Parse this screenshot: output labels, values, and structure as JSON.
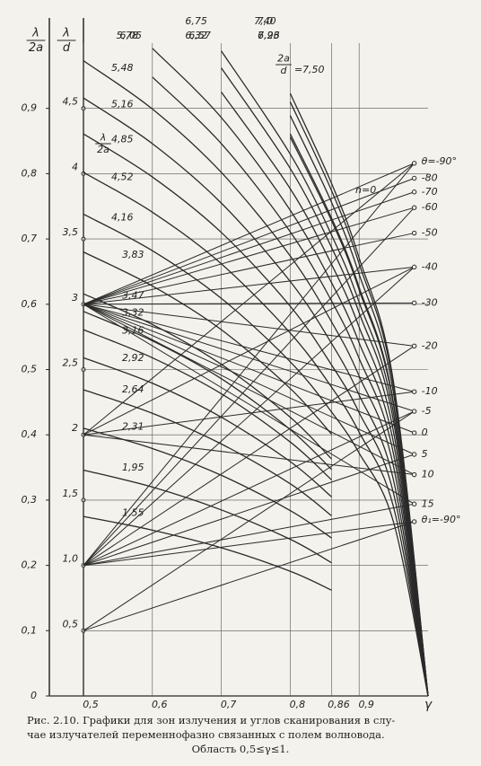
{
  "chart_data": {
    "type": "line",
    "y_label": {
      "numerator": "λ",
      "denominator": "2a"
    },
    "y2_label": {
      "numerator": "λ",
      "denominator": "d"
    },
    "x_label": "γ",
    "xlim": [
      0.5,
      1.0
    ],
    "xticks": [
      {
        "value": 0.5,
        "label": "0,5"
      },
      {
        "value": 0.6,
        "label": "0,6"
      },
      {
        "value": 0.7,
        "label": "0,7"
      },
      {
        "value": 0.8,
        "label": "0,8"
      },
      {
        "value": 0.86,
        "label": "0,86"
      },
      {
        "value": 0.9,
        "label": "0,9"
      }
    ],
    "ylim": [
      0,
      1.0
    ],
    "yticks": [
      0,
      {
        "value": 0.1,
        "label": "0,1"
      },
      {
        "value": 0.2,
        "label": "0,2"
      },
      {
        "value": 0.3,
        "label": "0,3"
      },
      {
        "value": 0.4,
        "label": "0,4"
      },
      {
        "value": 0.5,
        "label": "0,5"
      },
      {
        "value": 0.6,
        "label": "0,6"
      },
      {
        "value": 0.7,
        "label": "0,7"
      },
      {
        "value": 0.8,
        "label": "0,8"
      },
      {
        "value": 0.9,
        "label": "0,9"
      }
    ],
    "y2lim": [
      0,
      5.0
    ],
    "y2ticks": [
      {
        "value": 0.5,
        "label": "0,5"
      },
      {
        "value": 1.0,
        "label": "1,0"
      },
      {
        "value": 1.5,
        "label": "1,5"
      },
      2,
      {
        "value": 2.5,
        "label": "2,5"
      },
      3,
      {
        "value": 3.5,
        "label": "3,5"
      },
      4,
      {
        "value": 4.5,
        "label": "4,5"
      }
    ],
    "grid": true,
    "color": "#2a2a2a",
    "x": [
      0.5,
      0.6,
      0.7,
      0.8,
      0.86,
      0.9,
      0.95,
      1.0
    ],
    "series": [
      {
        "name": "1,55",
        "values": [
          0.275,
          0.254,
          0.227,
          0.191,
          0.162,
          null,
          null,
          null
        ]
      },
      {
        "name": "1,95",
        "values": [
          0.346,
          0.32,
          0.285,
          0.24,
          0.204,
          null,
          null,
          null
        ]
      },
      {
        "name": "2,31",
        "values": [
          0.41,
          0.379,
          0.338,
          0.284,
          0.242,
          null,
          null,
          null
        ]
      },
      {
        "name": "2,64",
        "values": [
          0.469,
          0.433,
          0.386,
          0.325,
          0.276,
          null,
          null,
          null
        ]
      },
      {
        "name": "2,92",
        "values": [
          0.518,
          0.479,
          0.427,
          0.359,
          0.305,
          null,
          null,
          null
        ]
      },
      {
        "name": "3,16",
        "values": [
          0.561,
          0.518,
          0.463,
          0.389,
          0.331,
          null,
          null,
          null
        ]
      },
      {
        "name": "3,32",
        "values": [
          0.589,
          0.544,
          0.486,
          0.408,
          0.347,
          null,
          null,
          null
        ]
      },
      {
        "name": "3,47",
        "values": [
          0.616,
          0.569,
          0.508,
          0.427,
          0.363,
          null,
          null,
          null
        ]
      },
      {
        "name": "3,83",
        "values": [
          0.68,
          0.628,
          0.561,
          0.471,
          0.401,
          null,
          null,
          null
        ]
      },
      {
        "name": "4,16",
        "values": [
          0.738,
          0.682,
          0.609,
          0.512,
          0.435,
          0.372,
          0.266,
          0
        ]
      },
      {
        "name": "4,52",
        "values": [
          0.802,
          0.741,
          0.662,
          0.556,
          0.473,
          0.404,
          0.289,
          0
        ]
      },
      {
        "name": "4,85",
        "values": [
          0.861,
          0.795,
          0.71,
          0.597,
          0.507,
          0.434,
          0.31,
          0
        ]
      },
      {
        "name": "5,16",
        "values": [
          0.916,
          0.846,
          0.755,
          0.635,
          0.54,
          0.461,
          0.33,
          0
        ]
      },
      {
        "name": "5,48",
        "values": [
          0.973,
          0.899,
          0.802,
          0.674,
          0.573,
          0.49,
          0.351,
          0
        ]
      },
      {
        "name": "5,78",
        "values": [
          null,
          0.948,
          0.846,
          0.711,
          0.605,
          0.517,
          0.37,
          0
        ]
      },
      {
        "name": "6,05",
        "values": [
          null,
          0.992,
          0.886,
          0.744,
          0.633,
          0.541,
          0.387,
          0
        ]
      },
      {
        "name": "6,32",
        "values": [
          null,
          null,
          0.925,
          0.777,
          0.661,
          0.565,
          0.404,
          0
        ]
      },
      {
        "name": "6,57",
        "values": [
          null,
          null,
          0.962,
          0.808,
          0.687,
          0.587,
          0.42,
          0
        ]
      },
      {
        "name": "6,75",
        "values": [
          null,
          null,
          0.988,
          0.83,
          0.706,
          0.603,
          0.432,
          0
        ]
      },
      {
        "name": "6,96",
        "values": [
          null,
          null,
          null,
          0.856,
          0.728,
          0.622,
          0.445,
          0
        ]
      },
      {
        "name": "7,0",
        "values": [
          null,
          null,
          null,
          0.861,
          0.732,
          0.626,
          0.448,
          0
        ]
      },
      {
        "name": "7,23",
        "values": [
          null,
          null,
          null,
          0.889,
          0.756,
          0.646,
          0.463,
          0
        ]
      },
      {
        "name": "7,40",
        "values": [
          null,
          null,
          null,
          0.91,
          0.774,
          0.662,
          0.474,
          0
        ]
      },
      {
        "name": "7,50",
        "values": [
          null,
          null,
          null,
          0.923,
          0.785,
          0.671,
          0.48,
          0
        ]
      }
    ],
    "theta_scale": [
      {
        "value": 0.816,
        "label": "θ=-90°"
      },
      {
        "value": 0.793,
        "label": "-80"
      },
      {
        "value": 0.772,
        "label": "-70"
      },
      {
        "value": 0.748,
        "label": "-60"
      },
      {
        "value": 0.709,
        "label": "-50"
      },
      {
        "value": 0.657,
        "label": "-40"
      },
      {
        "value": 0.602,
        "label": "-30"
      },
      {
        "value": 0.536,
        "label": "-20"
      },
      {
        "value": 0.466,
        "label": "-10"
      },
      {
        "value": 0.436,
        "label": "-5"
      },
      {
        "value": 0.403,
        "label": "0"
      },
      {
        "value": 0.37,
        "label": "5"
      },
      {
        "value": 0.339,
        "label": "10"
      },
      {
        "value": 0.294,
        "label": "15"
      },
      {
        "value": 0.267,
        "label": "θ₁=-90°"
      }
    ],
    "lines": [
      {
        "x": [
          0.5,
          0.98
        ],
        "values": [
          0.6,
          0.816
        ]
      },
      {
        "x": [
          0.5,
          0.98
        ],
        "values": [
          0.6,
          0.793
        ]
      },
      {
        "x": [
          0.5,
          0.98
        ],
        "values": [
          0.6,
          0.772
        ]
      },
      {
        "x": [
          0.5,
          0.98
        ],
        "values": [
          0.6,
          0.748
        ]
      },
      {
        "x": [
          0.5,
          0.98
        ],
        "values": [
          0.6,
          0.709
        ]
      },
      {
        "x": [
          0.5,
          0.98
        ],
        "values": [
          0.6,
          0.657
        ]
      },
      {
        "x": [
          0.5,
          0.98
        ],
        "values": [
          0.6,
          0.602
        ]
      },
      {
        "x": [
          0.5,
          0.98
        ],
        "values": [
          0.6,
          0.536
        ]
      },
      {
        "x": [
          0.5,
          0.98
        ],
        "values": [
          0.6,
          0.466
        ]
      },
      {
        "x": [
          0.5,
          0.98
        ],
        "values": [
          0.6,
          0.436
        ]
      },
      {
        "x": [
          0.5,
          0.98
        ],
        "values": [
          0.6,
          0.403
        ]
      },
      {
        "x": [
          0.5,
          0.98
        ],
        "values": [
          0.6,
          0.37
        ]
      },
      {
        "x": [
          0.5,
          0.98
        ],
        "values": [
          0.6,
          0.339
        ]
      },
      {
        "x": [
          0.5,
          0.98
        ],
        "values": [
          0.6,
          0.294
        ]
      },
      {
        "x": [
          0.5,
          0.98
        ],
        "values": [
          0.2,
          0.816
        ]
      },
      {
        "x": [
          0.5,
          0.98
        ],
        "values": [
          0.2,
          0.748
        ]
      },
      {
        "x": [
          0.5,
          0.98
        ],
        "values": [
          0.2,
          0.657
        ]
      },
      {
        "x": [
          0.5,
          0.98
        ],
        "values": [
          0.2,
          0.536
        ]
      },
      {
        "x": [
          0.5,
          0.98
        ],
        "values": [
          0.2,
          0.436
        ]
      },
      {
        "x": [
          0.5,
          0.98
        ],
        "values": [
          0.2,
          0.37
        ]
      },
      {
        "x": [
          0.5,
          0.98
        ],
        "values": [
          0.2,
          0.294
        ]
      },
      {
        "x": [
          0.5,
          0.98
        ],
        "values": [
          0.2,
          0.267
        ]
      },
      {
        "x": [
          0.5,
          0.98
        ],
        "values": [
          0.4,
          0.816
        ]
      },
      {
        "x": [
          0.5,
          0.98
        ],
        "values": [
          0.4,
          0.657
        ]
      },
      {
        "x": [
          0.5,
          0.98
        ],
        "values": [
          0.4,
          0.466
        ]
      },
      {
        "x": [
          0.5,
          0.98
        ],
        "values": [
          0.4,
          0.339
        ]
      },
      {
        "x": [
          0.5,
          0.98
        ],
        "values": [
          0.1,
          0.436
        ]
      },
      {
        "x": [
          0.5,
          0.98
        ],
        "values": [
          0.1,
          0.267
        ]
      }
    ],
    "annotations": {
      "n0": "n=0",
      "ratio_label": {
        "numerator": "2a",
        "denominator": "d",
        "suffix": "="
      },
      "inline_label": {
        "numerator": "λ",
        "denominator": "2a"
      }
    },
    "caption": [
      "Рис. 2.10. Графики для зон излучения и углов сканирования в слу-",
      "чае излучателей переменнофазно связанных с полем волновода.",
      "Область 0,5≤γ≤1."
    ]
  }
}
